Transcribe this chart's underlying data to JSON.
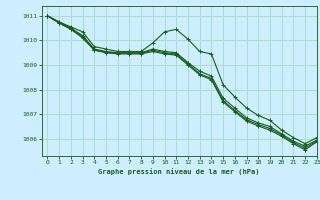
{
  "title": "Graphe pression niveau de la mer (hPa)",
  "background_color": "#cceeff",
  "grid_color": "#aaddcc",
  "line_color": "#1a5c1a",
  "spine_color": "#336633",
  "xlim": [
    -0.5,
    23
  ],
  "ylim": [
    1005.3,
    1011.4
  ],
  "yticks": [
    1006,
    1007,
    1008,
    1009,
    1010,
    1011
  ],
  "xticks": [
    0,
    1,
    2,
    3,
    4,
    5,
    6,
    7,
    8,
    9,
    10,
    11,
    12,
    13,
    14,
    15,
    16,
    17,
    18,
    19,
    20,
    21,
    22,
    23
  ],
  "series": [
    [
      1011.0,
      1010.75,
      1010.55,
      1010.35,
      1009.75,
      1009.65,
      1009.55,
      1009.55,
      1009.55,
      1009.9,
      1010.35,
      1010.45,
      1010.05,
      1009.55,
      1009.45,
      1008.2,
      1007.7,
      1007.25,
      1006.95,
      1006.75,
      1006.35,
      1006.05,
      1005.8,
      1006.05
    ],
    [
      1011.0,
      1010.75,
      1010.5,
      1010.2,
      1009.65,
      1009.55,
      1009.5,
      1009.5,
      1009.5,
      1009.65,
      1009.55,
      1009.5,
      1009.1,
      1008.75,
      1008.55,
      1007.65,
      1007.25,
      1006.85,
      1006.65,
      1006.5,
      1006.2,
      1005.9,
      1005.7,
      1005.95
    ],
    [
      1011.0,
      1010.72,
      1010.48,
      1010.15,
      1009.62,
      1009.52,
      1009.48,
      1009.48,
      1009.48,
      1009.6,
      1009.5,
      1009.45,
      1009.05,
      1008.65,
      1008.45,
      1007.55,
      1007.15,
      1006.78,
      1006.58,
      1006.42,
      1006.15,
      1005.85,
      1005.62,
      1005.92
    ],
    [
      1011.0,
      1010.7,
      1010.45,
      1010.1,
      1009.6,
      1009.5,
      1009.45,
      1009.45,
      1009.45,
      1009.55,
      1009.45,
      1009.4,
      1009.0,
      1008.6,
      1008.4,
      1007.5,
      1007.1,
      1006.72,
      1006.52,
      1006.35,
      1006.1,
      1005.8,
      1005.55,
      1005.88
    ]
  ]
}
